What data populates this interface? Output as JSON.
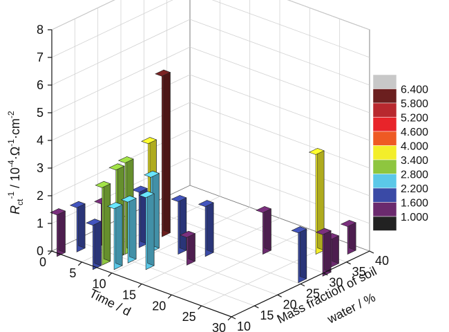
{
  "chart_data": {
    "type": "bar3d",
    "ylabel_symbol": "R",
    "ylabel_sub": "ct",
    "ylabel_sup1": "-1",
    "ylabel_mid": " / 10",
    "ylabel_sup2": "-4",
    "ylabel_mid2": "·Ω",
    "ylabel_sup3": "-1",
    "ylabel_mid3": "·cm",
    "ylabel_sup4": "-2",
    "time_axis_label": "Time / d",
    "mass_axis_label_line1": "Mass fraction of soil",
    "mass_axis_label_line2": "water / %",
    "time_ticks": [
      "0",
      "5",
      "10",
      "15",
      "20",
      "25",
      "30"
    ],
    "mass_ticks": [
      "10",
      "15",
      "20",
      "25",
      "30",
      "35",
      "40"
    ],
    "z_ticks": [
      "0",
      "1",
      "2",
      "3",
      "4",
      "5",
      "6",
      "7",
      "8"
    ],
    "time_range": [
      0,
      30
    ],
    "mass_range": [
      10,
      40
    ],
    "z_range": [
      0,
      8
    ],
    "grid": true,
    "legend_position": "right",
    "legend": {
      "labels": [
        "6.400",
        "5.800",
        "5.200",
        "4.600",
        "4.000",
        "3.400",
        "2.800",
        "2.200",
        "1.600",
        "1.000"
      ],
      "colors": [
        "#c8c8c8",
        "#6b1f1f",
        "#b8282e",
        "#e8242a",
        "#ee5a24",
        "#f3ee2a",
        "#8ec63f",
        "#5bc8e8",
        "#3a4aa6",
        "#6b2a6e",
        "#222222"
      ]
    },
    "bars": [
      {
        "time": 1,
        "mass": 10,
        "value": 1.5
      },
      {
        "time": 2,
        "mass": 13,
        "value": 1.6
      },
      {
        "time": 3,
        "mass": 17,
        "value": 1.5
      },
      {
        "time": 7,
        "mass": 10,
        "value": 1.6
      },
      {
        "time": 7,
        "mass": 12,
        "value": 2.8
      },
      {
        "time": 7,
        "mass": 15,
        "value": 3.2
      },
      {
        "time": 7,
        "mass": 17,
        "value": 3.3
      },
      {
        "time": 7,
        "mass": 20,
        "value": 2.0
      },
      {
        "time": 7,
        "mass": 22,
        "value": 3.6
      },
      {
        "time": 7,
        "mass": 25,
        "value": 5.8
      },
      {
        "time": 9,
        "mass": 12,
        "value": 2.2
      },
      {
        "time": 9,
        "mass": 15,
        "value": 2.2
      },
      {
        "time": 9,
        "mass": 20,
        "value": 2.7
      },
      {
        "time": 12,
        "mass": 15,
        "value": 2.6
      },
      {
        "time": 12,
        "mass": 22,
        "value": 1.9
      },
      {
        "time": 15,
        "mass": 20,
        "value": 1.0
      },
      {
        "time": 15,
        "mass": 24,
        "value": 1.8
      },
      {
        "time": 20,
        "mass": 30,
        "value": 1.5
      },
      {
        "time": 25,
        "mass": 35,
        "value": 3.6
      },
      {
        "time": 28,
        "mass": 38,
        "value": 1.0
      },
      {
        "time": 29,
        "mass": 33,
        "value": 1.0
      },
      {
        "time": 29,
        "mass": 26,
        "value": 1.8
      },
      {
        "time": 30,
        "mass": 30,
        "value": 1.5
      }
    ]
  }
}
